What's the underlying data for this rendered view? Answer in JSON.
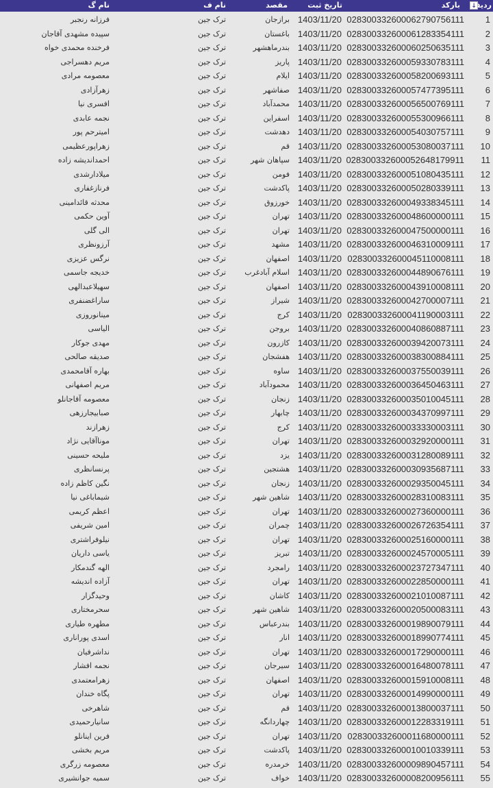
{
  "colors": {
    "header_bg": "#3e3790",
    "header_text": "#ffffff",
    "row_bg": "#e7e7e7"
  },
  "header": {
    "row_no": "ردیف",
    "sort_icon": "sort-filter-icon",
    "sort_glyph": "↓",
    "barcode": "بارکد",
    "date": "تاریخ ثبت",
    "dest": "مقصد",
    "sender": "نام ف",
    "receiver": "نام گ"
  },
  "rows": [
    {
      "no": "1",
      "barcode": "028300332600062790756111",
      "date": "1403/11/20",
      "dest": "برازجان",
      "sender": "ترک جین",
      "receiver": "فرزانه رنجبر"
    },
    {
      "no": "2",
      "barcode": "028300332600061283354111",
      "date": "1403/11/20",
      "dest": "باغستان",
      "sender": "ترک جین",
      "receiver": "سپیده مشهدی آقاجان"
    },
    {
      "no": "3",
      "barcode": "028300332600060250635111",
      "date": "1403/11/20",
      "dest": "بندرماهشهر",
      "sender": "ترک جین",
      "receiver": "فرخنده محمدی خواه"
    },
    {
      "no": "4",
      "barcode": "028300332600059330783111",
      "date": "1403/11/20",
      "dest": "پاریز",
      "sender": "ترک جین",
      "receiver": "مریم دهسراجی"
    },
    {
      "no": "5",
      "barcode": "028300332600058200693111",
      "date": "1403/11/20",
      "dest": "ایلام",
      "sender": "ترک جین",
      "receiver": "معصومه مرادی"
    },
    {
      "no": "6",
      "barcode": "028300332600057477395111",
      "date": "1403/11/20",
      "dest": "صفاشهر",
      "sender": "ترک جین",
      "receiver": "زهرآزادی"
    },
    {
      "no": "7",
      "barcode": "028300332600056500769111",
      "date": "1403/11/20",
      "dest": "محمدآباد",
      "sender": "ترک جین",
      "receiver": "افسری نیا"
    },
    {
      "no": "8",
      "barcode": "028300332600055300966111",
      "date": "1403/11/20",
      "dest": "اسفراین",
      "sender": "ترک جین",
      "receiver": "نجمه عابدی"
    },
    {
      "no": "9",
      "barcode": "028300332600054030757111",
      "date": "1403/11/20",
      "dest": "دهدشت",
      "sender": "ترک جین",
      "receiver": "امیترحم پور"
    },
    {
      "no": "10",
      "barcode": "028300332600053080037111",
      "date": "1403/11/20",
      "dest": "قم",
      "sender": "ترک جین",
      "receiver": "زهراپورعظیمی"
    },
    {
      "no": "11",
      "barcode": "028300332600052648179911",
      "date": "1403/11/20",
      "dest": "سپاهان شهر",
      "sender": "ترک جین",
      "receiver": "احمداندیشه زاده"
    },
    {
      "no": "12",
      "barcode": "028300332600051080435111",
      "date": "1403/11/20",
      "dest": "فومن",
      "sender": "ترک جین",
      "receiver": "میلادارشدی"
    },
    {
      "no": "13",
      "barcode": "028300332600050280339111",
      "date": "1403/11/20",
      "dest": "پاکدشت",
      "sender": "ترک جین",
      "receiver": "فرنازغفاری"
    },
    {
      "no": "14",
      "barcode": "028300332600049338345111",
      "date": "1403/11/20",
      "dest": "خورزوق",
      "sender": "ترک جین",
      "receiver": "محدثه قائدامینی"
    },
    {
      "no": "15",
      "barcode": "028300332600048600000111",
      "date": "1403/11/20",
      "dest": "تهران",
      "sender": "ترک جین",
      "receiver": "آوین حکمی"
    },
    {
      "no": "16",
      "barcode": "028300332600047500000111",
      "date": "1403/11/20",
      "dest": "تهران",
      "sender": "ترک جین",
      "receiver": "الی گلی"
    },
    {
      "no": "17",
      "barcode": "028300332600046310009111",
      "date": "1403/11/20",
      "dest": "مشهد",
      "sender": "ترک جین",
      "receiver": "آرزونظری"
    },
    {
      "no": "18",
      "barcode": "028300332600045110008111",
      "date": "1403/11/20",
      "dest": "اصفهان",
      "sender": "ترک جین",
      "receiver": "نرگس عزیزی"
    },
    {
      "no": "19",
      "barcode": "028300332600044890676111",
      "date": "1403/11/20",
      "dest": "اسلام آبادغرب",
      "sender": "ترک جین",
      "receiver": "خدیجه جاسمی"
    },
    {
      "no": "20",
      "barcode": "028300332600043910008111",
      "date": "1403/11/20",
      "dest": "اصفهان",
      "sender": "ترک جین",
      "receiver": "سهیلاعبدالهی"
    },
    {
      "no": "21",
      "barcode": "028300332600042700007111",
      "date": "1403/11/20",
      "dest": "شیراز",
      "sender": "ترک جین",
      "receiver": "ساراغضنفری"
    },
    {
      "no": "22",
      "barcode": "028300332600041190003111",
      "date": "1403/11/20",
      "dest": "کرج",
      "sender": "ترک جین",
      "receiver": "مینانوروزی"
    },
    {
      "no": "23",
      "barcode": "028300332600040860887111",
      "date": "1403/11/20",
      "dest": "بروجن",
      "sender": "ترک جین",
      "receiver": "الیاسی"
    },
    {
      "no": "24",
      "barcode": "028300332600039420073111",
      "date": "1403/11/20",
      "dest": "کازرون",
      "sender": "ترک جین",
      "receiver": "مهدی جوکار"
    },
    {
      "no": "25",
      "barcode": "028300332600038300884111",
      "date": "1403/11/20",
      "dest": "هفشجان",
      "sender": "ترک جین",
      "receiver": "صدیقه صالحی"
    },
    {
      "no": "26",
      "barcode": "028300332600037550039111",
      "date": "1403/11/20",
      "dest": "ساوه",
      "sender": "ترک جین",
      "receiver": "بهاره آقامحمدی"
    },
    {
      "no": "27",
      "barcode": "028300332600036450463111",
      "date": "1403/11/20",
      "dest": "محمودآباد",
      "sender": "ترک جین",
      "receiver": "مریم اصفهانی"
    },
    {
      "no": "28",
      "barcode": "028300332600035010045111",
      "date": "1403/11/20",
      "dest": "زنجان",
      "sender": "ترک جین",
      "receiver": "معصومه آقاجانلو"
    },
    {
      "no": "29",
      "barcode": "028300332600034370997111",
      "date": "1403/11/20",
      "dest": "چابهار",
      "sender": "ترک جین",
      "receiver": "صبابیجارزهی"
    },
    {
      "no": "30",
      "barcode": "028300332600033330003111",
      "date": "1403/11/20",
      "dest": "کرج",
      "sender": "ترک جین",
      "receiver": "زهرازند"
    },
    {
      "no": "31",
      "barcode": "028300332600032920000111",
      "date": "1403/11/20",
      "dest": "تهران",
      "sender": "ترک جین",
      "receiver": "موناآقایی نژاد"
    },
    {
      "no": "32",
      "barcode": "028300332600031280089111",
      "date": "1403/11/20",
      "dest": "یزد",
      "sender": "ترک جین",
      "receiver": "ملیحه حسینی"
    },
    {
      "no": "33",
      "barcode": "028300332600030935687111",
      "date": "1403/11/20",
      "dest": "هشتجین",
      "sender": "ترک جین",
      "receiver": "پرنسانظری"
    },
    {
      "no": "34",
      "barcode": "028300332600029350045111",
      "date": "1403/11/20",
      "dest": "زنجان",
      "sender": "ترک جین",
      "receiver": "نگین کاظم زاده"
    },
    {
      "no": "35",
      "barcode": "028300332600028310083111",
      "date": "1403/11/20",
      "dest": "شاهین شهر",
      "sender": "ترک جین",
      "receiver": "شیماباغی نیا"
    },
    {
      "no": "36",
      "barcode": "028300332600027360000111",
      "date": "1403/11/20",
      "dest": "تهران",
      "sender": "ترک جین",
      "receiver": "اعظم کریمی"
    },
    {
      "no": "37",
      "barcode": "028300332600026726354111",
      "date": "1403/11/20",
      "dest": "چمران",
      "sender": "ترک جین",
      "receiver": "امین شریفی"
    },
    {
      "no": "38",
      "barcode": "028300332600025160000111",
      "date": "1403/11/20",
      "dest": "تهران",
      "sender": "ترک جین",
      "receiver": "نیلوفراشتری"
    },
    {
      "no": "39",
      "barcode": "028300332600024570005111",
      "date": "1403/11/20",
      "dest": "تبریز",
      "sender": "ترک جین",
      "receiver": "یاسی داریان"
    },
    {
      "no": "40",
      "barcode": "028300332600023727347111",
      "date": "1403/11/20",
      "dest": "رامجرد",
      "sender": "ترک جین",
      "receiver": "الهه گندمکار"
    },
    {
      "no": "41",
      "barcode": "028300332600022850000111",
      "date": "1403/11/20",
      "dest": "تهران",
      "sender": "ترک جین",
      "receiver": "آزاده اندیشه"
    },
    {
      "no": "42",
      "barcode": "028300332600021010087111",
      "date": "1403/11/20",
      "dest": "کاشان",
      "sender": "ترک جین",
      "receiver": "وحیدگزار"
    },
    {
      "no": "43",
      "barcode": "028300332600020500083111",
      "date": "1403/11/20",
      "dest": "شاهین شهر",
      "sender": "ترک جین",
      "receiver": "سحرمختاری"
    },
    {
      "no": "44",
      "barcode": "028300332600019890079111",
      "date": "1403/11/20",
      "dest": "بندرعباس",
      "sender": "ترک جین",
      "receiver": "مطهره طیاری"
    },
    {
      "no": "45",
      "barcode": "028300332600018990774111",
      "date": "1403/11/20",
      "dest": "انار",
      "sender": "ترک جین",
      "receiver": "اسدی پوراناری"
    },
    {
      "no": "46",
      "barcode": "028300332600017290000111",
      "date": "1403/11/20",
      "dest": "تهران",
      "sender": "ترک جین",
      "receiver": "نداشرفیان"
    },
    {
      "no": "47",
      "barcode": "028300332600016480078111",
      "date": "1403/11/20",
      "dest": "سیرجان",
      "sender": "ترک جین",
      "receiver": "نجمه افشار"
    },
    {
      "no": "48",
      "barcode": "028300332600015910008111",
      "date": "1403/11/20",
      "dest": "اصفهان",
      "sender": "ترک جین",
      "receiver": "زهرامعتمدی"
    },
    {
      "no": "49",
      "barcode": "028300332600014990000111",
      "date": "1403/11/20",
      "dest": "تهران",
      "sender": "ترک جین",
      "receiver": "پگاه خندان"
    },
    {
      "no": "50",
      "barcode": "028300332600013800037111",
      "date": "1403/11/20",
      "dest": "قم",
      "sender": "ترک جین",
      "receiver": "شاهرخی"
    },
    {
      "no": "51",
      "barcode": "028300332600012283319111",
      "date": "1403/11/20",
      "dest": "چهاردانگه",
      "sender": "ترک جین",
      "receiver": "سانیارحمیدی"
    },
    {
      "no": "52",
      "barcode": "028300332600011680000111",
      "date": "1403/11/20",
      "dest": "تهران",
      "sender": "ترک جین",
      "receiver": "فرین اینانلو"
    },
    {
      "no": "53",
      "barcode": "028300332600010010339111",
      "date": "1403/11/20",
      "dest": "پاکدشت",
      "sender": "ترک جین",
      "receiver": "مریم بخشی"
    },
    {
      "no": "54",
      "barcode": "028300332600009890457111",
      "date": "1403/11/20",
      "dest": "خرمدره",
      "sender": "ترک جین",
      "receiver": "معصومه زرگری"
    },
    {
      "no": "55",
      "barcode": "028300332600008200956111",
      "date": "1403/11/20",
      "dest": "خواف",
      "sender": "ترک جین",
      "receiver": "سمیه جوانشیری"
    }
  ]
}
